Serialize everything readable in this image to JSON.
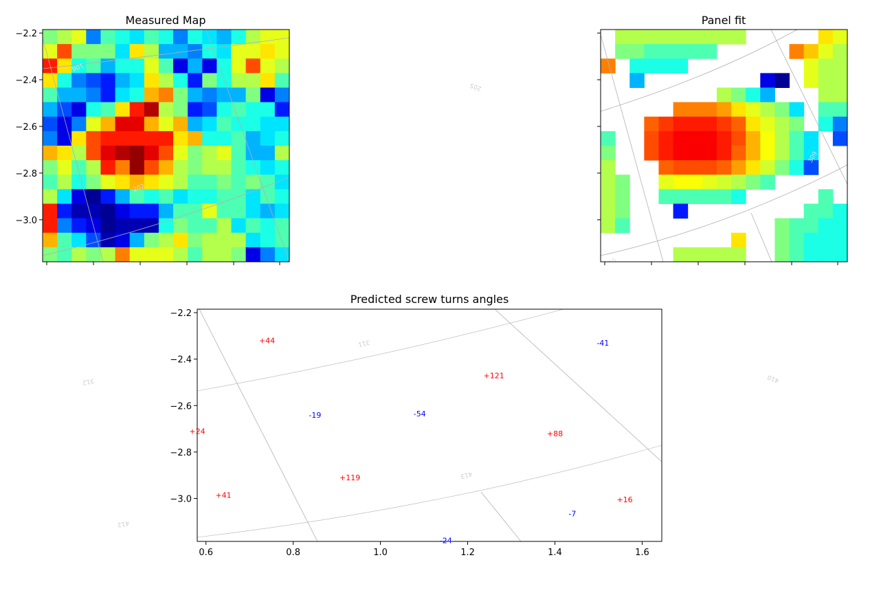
{
  "chart_data": [
    {
      "type": "heatmap",
      "title": "Measured Map",
      "colormap": "jet",
      "ylim": [
        -3.18,
        -2.185
      ],
      "y_ticks": [
        -2.2,
        -2.4,
        -2.6,
        -2.8,
        -3.0
      ],
      "x_tick_labels_visible": false,
      "value_range": [
        0,
        1
      ],
      "rows": 16,
      "cols": 17,
      "values": [
        [
          0.5,
          0.55,
          0.6,
          0.25,
          0.45,
          0.4,
          0.35,
          0.45,
          0.4,
          0.25,
          0.4,
          0.35,
          0.3,
          0.4,
          0.55,
          0.6,
          0.6
        ],
        [
          0.6,
          0.8,
          0.5,
          0.5,
          0.5,
          0.35,
          0.65,
          0.55,
          0.3,
          0.3,
          0.25,
          0.4,
          0.35,
          0.6,
          0.6,
          0.65,
          0.6
        ],
        [
          0.85,
          0.65,
          0.4,
          0.45,
          0.3,
          0.4,
          0.4,
          0.6,
          0.45,
          0.1,
          0.3,
          0.1,
          0.4,
          0.6,
          0.8,
          0.6,
          0.55
        ],
        [
          0.65,
          0.4,
          0.25,
          0.2,
          0.15,
          0.3,
          0.35,
          0.65,
          0.55,
          0.4,
          0.15,
          0.5,
          0.4,
          0.55,
          0.55,
          0.65,
          0.45
        ],
        [
          0.45,
          0.3,
          0.3,
          0.25,
          0.15,
          0.35,
          0.4,
          0.7,
          0.75,
          0.5,
          0.3,
          0.25,
          0.3,
          0.3,
          0.5,
          0.1,
          0.25
        ],
        [
          0.3,
          0.2,
          0.1,
          0.4,
          0.45,
          0.65,
          0.85,
          0.95,
          0.55,
          0.5,
          0.15,
          0.2,
          0.4,
          0.45,
          0.4,
          0.4,
          0.15
        ],
        [
          0.2,
          0.1,
          0.25,
          0.6,
          0.7,
          0.9,
          0.9,
          0.7,
          0.6,
          0.7,
          0.3,
          0.35,
          0.45,
          0.4,
          0.4,
          0.35,
          0.35
        ],
        [
          0.25,
          0.1,
          0.65,
          0.8,
          0.85,
          0.85,
          0.85,
          0.85,
          0.85,
          0.65,
          0.7,
          0.4,
          0.4,
          0.45,
          0.3,
          0.35,
          0.4
        ],
        [
          0.7,
          0.65,
          0.55,
          0.8,
          0.9,
          0.95,
          0.98,
          0.9,
          0.8,
          0.6,
          0.5,
          0.55,
          0.6,
          0.45,
          0.3,
          0.3,
          0.55
        ],
        [
          0.5,
          0.6,
          0.45,
          0.55,
          0.85,
          0.75,
          0.98,
          0.8,
          0.7,
          0.55,
          0.5,
          0.55,
          0.55,
          0.45,
          0.4,
          0.35,
          0.4
        ],
        [
          0.45,
          0.55,
          0.4,
          0.5,
          0.6,
          0.65,
          0.7,
          0.65,
          0.6,
          0.55,
          0.45,
          0.45,
          0.5,
          0.45,
          0.5,
          0.45,
          0.35
        ],
        [
          0.55,
          0.35,
          0.1,
          0.02,
          0.15,
          0.3,
          0.45,
          0.4,
          0.45,
          0.35,
          0.4,
          0.4,
          0.45,
          0.45,
          0.35,
          0.45,
          0.4
        ],
        [
          0.85,
          0.15,
          0.05,
          0.05,
          0.02,
          0.1,
          0.15,
          0.15,
          0.3,
          0.45,
          0.45,
          0.6,
          0.45,
          0.45,
          0.35,
          0.3,
          0.35
        ],
        [
          0.85,
          0.25,
          0.15,
          0.1,
          0.02,
          0.05,
          0.05,
          0.05,
          0.4,
          0.5,
          0.45,
          0.45,
          0.55,
          0.35,
          0.45,
          0.4,
          0.45
        ],
        [
          0.7,
          0.45,
          0.35,
          0.2,
          0.05,
          0.1,
          0.3,
          0.5,
          0.55,
          0.65,
          0.5,
          0.55,
          0.55,
          0.55,
          0.35,
          0.4,
          0.45
        ],
        [
          0.5,
          0.45,
          0.55,
          0.5,
          0.55,
          0.75,
          0.6,
          0.6,
          0.6,
          0.55,
          0.45,
          0.55,
          0.55,
          0.5,
          0.1,
          0.25,
          0.35
        ]
      ],
      "overlay_labels": [
        "106",
        "202"
      ]
    },
    {
      "type": "heatmap",
      "title": "Panel fit",
      "colormap": "jet",
      "ylim": [
        -3.18,
        -2.185
      ],
      "y_tick_labels_visible": false,
      "x_tick_labels_visible": false,
      "value_range": [
        0,
        1
      ],
      "rows": 16,
      "cols": 17,
      "values": [
        [
          null,
          0.55,
          0.55,
          0.55,
          0.55,
          0.55,
          0.55,
          0.55,
          0.55,
          0.55,
          null,
          null,
          null,
          null,
          null,
          0.65,
          0.6
        ],
        [
          null,
          0.5,
          0.5,
          0.45,
          0.45,
          0.45,
          0.45,
          0.45,
          null,
          null,
          null,
          null,
          null,
          0.75,
          0.68,
          0.6,
          0.55
        ],
        [
          0.75,
          null,
          0.4,
          0.4,
          0.4,
          0.4,
          null,
          null,
          null,
          null,
          null,
          null,
          null,
          null,
          0.6,
          0.55,
          0.55
        ],
        [
          null,
          null,
          0.3,
          null,
          null,
          null,
          null,
          null,
          null,
          null,
          null,
          0.1,
          0.02,
          null,
          0.6,
          0.55,
          0.55
        ],
        [
          null,
          null,
          null,
          null,
          null,
          null,
          null,
          null,
          0.55,
          0.5,
          0.4,
          0.3,
          null,
          null,
          null,
          0.55,
          0.55
        ],
        [
          null,
          null,
          null,
          null,
          null,
          0.75,
          0.75,
          0.75,
          0.72,
          0.65,
          0.6,
          0.55,
          0.5,
          0.35,
          null,
          0.45,
          0.45
        ],
        [
          null,
          null,
          null,
          0.78,
          0.82,
          0.85,
          0.85,
          0.85,
          0.82,
          0.78,
          0.65,
          0.6,
          0.55,
          0.5,
          null,
          0.4,
          0.25
        ],
        [
          0.45,
          null,
          null,
          0.8,
          0.85,
          0.88,
          0.88,
          0.88,
          0.85,
          0.8,
          0.7,
          0.62,
          0.55,
          0.45,
          0.35,
          null,
          0.2
        ],
        [
          0.5,
          null,
          null,
          0.8,
          0.85,
          0.88,
          0.88,
          0.88,
          0.85,
          0.78,
          0.7,
          0.62,
          0.55,
          0.45,
          0.35,
          null,
          null
        ],
        [
          0.55,
          null,
          null,
          null,
          0.78,
          0.8,
          0.8,
          0.8,
          0.78,
          0.72,
          0.65,
          0.58,
          0.5,
          0.4,
          0.2,
          null,
          null
        ],
        [
          0.55,
          0.5,
          null,
          null,
          0.6,
          0.62,
          0.62,
          0.6,
          0.58,
          0.55,
          0.5,
          0.45,
          null,
          null,
          null,
          null,
          null
        ],
        [
          0.55,
          0.5,
          null,
          null,
          0.45,
          0.45,
          0.45,
          0.45,
          0.45,
          0.4,
          null,
          null,
          null,
          null,
          null,
          0.45,
          null
        ],
        [
          0.55,
          0.5,
          null,
          null,
          null,
          0.15,
          null,
          null,
          null,
          null,
          null,
          null,
          null,
          null,
          0.45,
          0.45,
          0.4
        ],
        [
          0.55,
          0.45,
          null,
          null,
          null,
          null,
          null,
          null,
          null,
          null,
          null,
          null,
          0.5,
          0.45,
          0.45,
          0.4,
          0.4
        ],
        [
          null,
          null,
          null,
          null,
          null,
          null,
          null,
          null,
          null,
          0.65,
          null,
          null,
          0.5,
          0.45,
          0.4,
          0.4,
          0.4
        ],
        [
          null,
          null,
          null,
          null,
          null,
          0.55,
          0.55,
          0.55,
          0.55,
          0.55,
          null,
          null,
          0.5,
          0.45,
          0.4,
          0.4,
          0.4
        ]
      ],
      "overlay_labels": [
        "309",
        "310"
      ]
    },
    {
      "type": "scatter",
      "title": "Predicted screw turns angles",
      "xlim": [
        0.58,
        1.645
      ],
      "ylim": [
        -3.185,
        -2.185
      ],
      "x_ticks": [
        0.6,
        0.8,
        1.0,
        1.2,
        1.4,
        1.6
      ],
      "y_ticks": [
        -2.2,
        -2.4,
        -2.6,
        -2.8,
        -3.0
      ],
      "positive_color": "#ff0000",
      "negative_color": "#0000ff",
      "annotations": [
        {
          "x": 0.74,
          "y": -2.32,
          "label": "+44"
        },
        {
          "x": 1.51,
          "y": -2.33,
          "label": "-41"
        },
        {
          "x": 1.26,
          "y": -2.47,
          "label": "+121"
        },
        {
          "x": 0.85,
          "y": -2.64,
          "label": "-19"
        },
        {
          "x": 1.09,
          "y": -2.635,
          "label": "-54"
        },
        {
          "x": 0.58,
          "y": -2.71,
          "label": "+24"
        },
        {
          "x": 1.4,
          "y": -2.72,
          "label": "+88"
        },
        {
          "x": 0.93,
          "y": -2.91,
          "label": "+119"
        },
        {
          "x": 0.64,
          "y": -2.985,
          "label": "+41"
        },
        {
          "x": 1.56,
          "y": -3.005,
          "label": "+16"
        },
        {
          "x": 1.44,
          "y": -3.065,
          "label": "-7"
        },
        {
          "x": 1.15,
          "y": -3.18,
          "label": "-24"
        }
      ],
      "overlay_labels": [
        "311",
        "413",
        "312",
        "412",
        "410",
        "205"
      ]
    }
  ]
}
